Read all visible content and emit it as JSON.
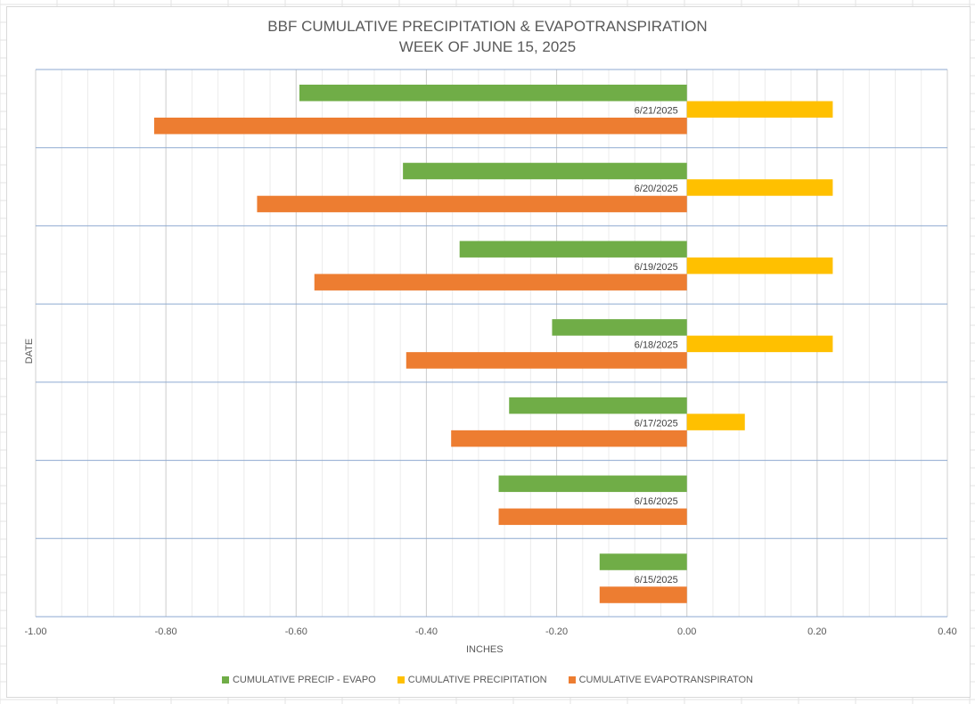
{
  "chart_data": {
    "type": "bar",
    "orientation": "horizontal",
    "title": "BBF CUMULATIVE PRECIPITATION & EVAPOTRANSPIRATION",
    "subtitle": "WEEK OF JUNE 15, 2025",
    "xlabel": "INCHES",
    "ylabel": "DATE",
    "xlim": [
      -1.0,
      0.4
    ],
    "x_ticks": [
      "-1.00",
      "-0.80",
      "-0.60",
      "-0.40",
      "-0.20",
      "0.00",
      "0.20",
      "0.40"
    ],
    "categories": [
      "6/21/2025",
      "6/20/2025",
      "6/19/2025",
      "6/18/2025",
      "6/17/2025",
      "6/16/2025",
      "6/15/2025"
    ],
    "series": [
      {
        "name": "CUMULATIVE PRECIP - EVAPO",
        "color": "#70ad47",
        "values": [
          -0.595,
          -0.436,
          -0.349,
          -0.207,
          -0.273,
          -0.289,
          -0.134
        ]
      },
      {
        "name": "CUMULATIVE PRECIPITATION",
        "color": "#ffc000",
        "values": [
          0.224,
          0.224,
          0.224,
          0.224,
          0.089,
          0,
          0
        ]
      },
      {
        "name": "CUMULATIVE EVAPOTRANSPIRATON",
        "color": "#ed7d31",
        "values": [
          -0.818,
          -0.66,
          -0.572,
          -0.431,
          -0.362,
          -0.289,
          -0.134
        ]
      }
    ],
    "gridlines": true,
    "legend_position": "bottom"
  }
}
